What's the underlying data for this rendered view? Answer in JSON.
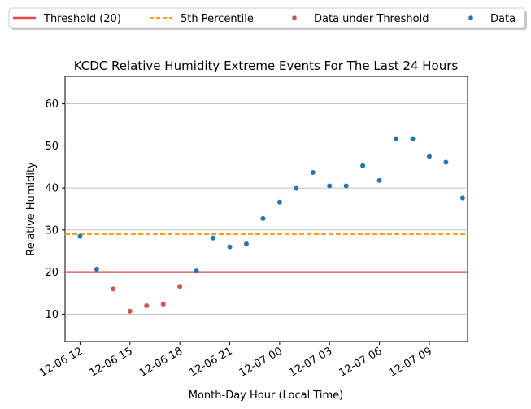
{
  "chart_data": {
    "type": "scatter",
    "title": "KCDC Relative Humidity Extreme Events For The Last 24 Hours",
    "xlabel": "Month-Day Hour (Local Time)",
    "ylabel": "Relative Humidity",
    "x_tick_labels": [
      "12-06 12",
      "12-06 15",
      "12-06 18",
      "12-06 21",
      "12-07 00",
      "12-07 03",
      "12-07 06",
      "12-07 09"
    ],
    "x_tick_hours": [
      0,
      3,
      6,
      9,
      12,
      15,
      18,
      21
    ],
    "x_range_hours": [
      -0.9,
      23.3
    ],
    "y_ticks": [
      10,
      20,
      30,
      40,
      50,
      60
    ],
    "ylim": [
      3.5,
      66.5
    ],
    "grid": "horizontal",
    "legend_position": "top, above the plot",
    "threshold": {
      "label": "Threshold (20)",
      "value": 20,
      "color": "#e8474b"
    },
    "percentile": {
      "label": "5th Percentile",
      "value": 29,
      "color": "#ffa010"
    },
    "series": [
      {
        "name": "Data under Threshold",
        "color": "#cd5450",
        "x_hours": [
          2,
          3,
          4,
          5,
          6
        ],
        "values": [
          16,
          10.7,
          12,
          12.4,
          16.6
        ]
      },
      {
        "name": "Data",
        "color": "#1f77b4",
        "x_hours": [
          0,
          1,
          7,
          8,
          9,
          10,
          11,
          12,
          13,
          14,
          15,
          16,
          17,
          18,
          19,
          20,
          21,
          22,
          23
        ],
        "values": [
          28.5,
          20.7,
          20.3,
          28.1,
          26,
          26.7,
          32.7,
          36.6,
          39.9,
          43.7,
          40.5,
          40.5,
          45.3,
          41.8,
          51.7,
          51.7,
          47.5,
          46.1,
          37.6
        ]
      }
    ]
  }
}
